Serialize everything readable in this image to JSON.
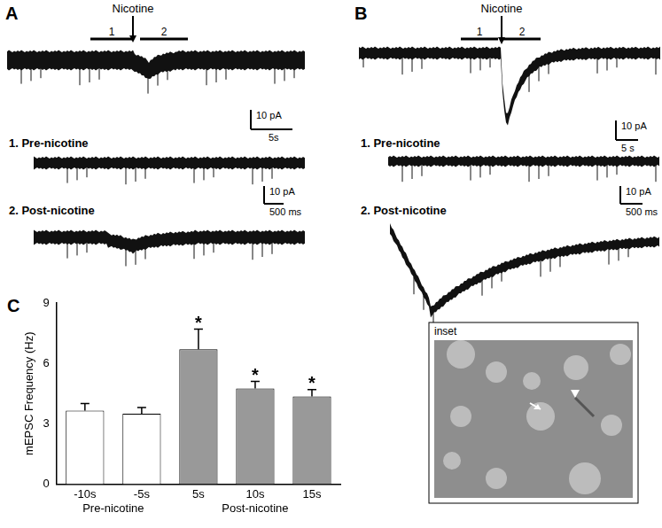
{
  "panels": [
    {
      "label": "A",
      "stimulus": "Nicotine",
      "epochs": [
        "1",
        "2"
      ],
      "scale_bar": {
        "amplitude": "10 pA",
        "time": "5s"
      },
      "subpanels": [
        {
          "title": "1. Pre-nicotine",
          "scale_bar": {
            "amplitude": "10 pA",
            "time": "500 ms"
          }
        },
        {
          "title": "2. Post-nicotine"
        }
      ]
    },
    {
      "label": "B",
      "stimulus": "Nicotine",
      "epochs": [
        "1",
        "2"
      ],
      "scale_bar": {
        "amplitude": "10 pA",
        "time": "5 s"
      },
      "subpanels": [
        {
          "title": "1. Pre-nicotine",
          "scale_bar": {
            "amplitude": "10 pA",
            "time": "500 ms"
          }
        },
        {
          "title": "2. Post-nicotine"
        }
      ],
      "inset": {
        "label": "inset"
      }
    }
  ],
  "chart_data": {
    "type": "bar",
    "panel_label": "C",
    "y_label": "mEPSC Frequency (Hz)",
    "categories": [
      "-10s",
      "-5s",
      "5s",
      "10s",
      "15s"
    ],
    "values": [
      3.65,
      3.5,
      6.7,
      4.75,
      4.35
    ],
    "errors": [
      0.35,
      0.3,
      1.0,
      0.35,
      0.35
    ],
    "significance": [
      null,
      null,
      "*",
      "*",
      "*"
    ],
    "groups": [
      {
        "label": "Pre-nicotine",
        "categories": [
          "-10s",
          "-5s"
        ]
      },
      {
        "label": "Post-nicotine",
        "categories": [
          "5s",
          "10s",
          "15s"
        ]
      }
    ],
    "colors": [
      "#ffffff",
      "#ffffff",
      "#999999",
      "#999999",
      "#999999"
    ],
    "ylim": [
      0,
      9
    ],
    "yticks": [
      0,
      3,
      6,
      9
    ],
    "grid": false
  }
}
